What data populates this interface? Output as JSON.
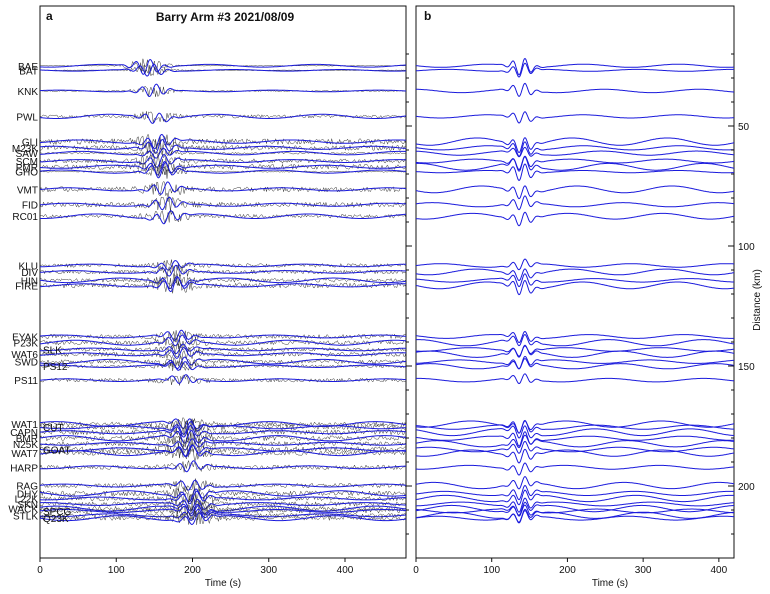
{
  "chart_data": [
    {
      "panel": "a",
      "type": "line",
      "title": "Barry Arm #3 2021/08/09",
      "xlabel": "Time (s)",
      "xlim": [
        0,
        480
      ],
      "xticks": [
        0,
        100,
        200,
        300,
        400
      ],
      "series_colors": {
        "raw": "#333333",
        "synthetic": "#1a1adc"
      },
      "stations": [
        {
          "name": "BAE",
          "distance": 24.9,
          "arrival": 140,
          "amp": 1.0,
          "noise": 0.1
        },
        {
          "name": "BAT",
          "distance": 26.8,
          "arrival": 145,
          "amp": 0.8,
          "noise": 0.1
        },
        {
          "name": "KNK",
          "distance": 35.4,
          "arrival": 148,
          "amp": 0.8,
          "noise": 0.15
        },
        {
          "name": "PWL",
          "distance": 46.0,
          "arrival": 152,
          "amp": 0.7,
          "noise": 0.5
        },
        {
          "name": "GLI",
          "distance": 56.5,
          "arrival": 155,
          "amp": 0.9,
          "noise": 0.9
        },
        {
          "name": "M23K",
          "distance": 59.1,
          "arrival": 156,
          "amp": 0.9,
          "noise": 0.8
        },
        {
          "name": "SAW",
          "distance": 61.3,
          "arrival": 157,
          "amp": 0.6,
          "noise": 0.3
        },
        {
          "name": "SCM",
          "distance": 64.6,
          "arrival": 158,
          "amp": 0.8,
          "noise": 0.7
        },
        {
          "name": "PMR",
          "distance": 67.0,
          "arrival": 159,
          "amp": 0.9,
          "noise": 0.8
        },
        {
          "name": "GHO",
          "distance": 69.0,
          "arrival": 160,
          "amp": 1.0,
          "noise": 0.2
        },
        {
          "name": "VMT",
          "distance": 76.4,
          "arrival": 163,
          "amp": 0.8,
          "noise": 0.8
        },
        {
          "name": "FID",
          "distance": 82.8,
          "arrival": 165,
          "amp": 0.8,
          "noise": 0.8
        },
        {
          "name": "RC01",
          "distance": 87.6,
          "arrival": 167,
          "amp": 0.8,
          "noise": 0.6
        },
        {
          "name": "KLU",
          "distance": 108.1,
          "arrival": 173,
          "amp": 0.6,
          "noise": 0.6
        },
        {
          "name": "DIV",
          "distance": 110.8,
          "arrival": 174,
          "amp": 0.7,
          "noise": 0.6
        },
        {
          "name": "HIN",
          "distance": 114.3,
          "arrival": 175,
          "amp": 0.8,
          "noise": 0.6
        },
        {
          "name": "FIRE",
          "distance": 116.4,
          "arrival": 176,
          "amp": 0.9,
          "noise": 0.8
        },
        {
          "name": "EYAK",
          "distance": 137.7,
          "arrival": 181,
          "amp": 0.7,
          "noise": 0.7
        },
        {
          "name": "P23K",
          "distance": 140.3,
          "arrival": 182,
          "amp": 0.7,
          "noise": 0.7
        },
        {
          "name": "SLK",
          "distance": 143.1,
          "arrival": 183,
          "amp": 0.6,
          "noise": 0.6
        },
        {
          "name": "WAT6",
          "distance": 145.1,
          "arrival": 184,
          "amp": 0.7,
          "noise": 0.7
        },
        {
          "name": "SWD",
          "distance": 148.2,
          "arrival": 185,
          "amp": 0.7,
          "noise": 0.6
        },
        {
          "name": "PS12",
          "distance": 150.1,
          "arrival": 186,
          "amp": 0.6,
          "noise": 0.5
        },
        {
          "name": "PS11",
          "distance": 155.9,
          "arrival": 187,
          "amp": 0.6,
          "noise": 0.6
        },
        {
          "name": "WAT1",
          "distance": 174.2,
          "arrival": 192,
          "amp": 0.7,
          "noise": 0.7
        },
        {
          "name": "CUT",
          "distance": 175.5,
          "arrival": 193,
          "amp": 0.8,
          "noise": 0.8
        },
        {
          "name": "CAPN",
          "distance": 177.6,
          "arrival": 193,
          "amp": 0.8,
          "noise": 0.8
        },
        {
          "name": "BMR",
          "distance": 180.1,
          "arrival": 194,
          "amp": 0.9,
          "noise": 0.8
        },
        {
          "name": "N25K",
          "distance": 182.4,
          "arrival": 195,
          "amp": 0.7,
          "noise": 0.7
        },
        {
          "name": "GOAT",
          "distance": 184.8,
          "arrival": 195,
          "amp": 0.7,
          "noise": 0.9
        },
        {
          "name": "WAT7",
          "distance": 186.3,
          "arrival": 196,
          "amp": 0.8,
          "noise": 0.7
        },
        {
          "name": "HARP",
          "distance": 192.2,
          "arrival": 197,
          "amp": 0.7,
          "noise": 0.7
        },
        {
          "name": "RAG",
          "distance": 199.8,
          "arrival": 199,
          "amp": 0.7,
          "noise": 0.7
        },
        {
          "name": "DHY",
          "distance": 203.1,
          "arrival": 200,
          "amp": 0.8,
          "noise": 0.8
        },
        {
          "name": "L22K",
          "distance": 205.2,
          "arrival": 201,
          "amp": 0.8,
          "noise": 0.7
        },
        {
          "name": "SKN",
          "distance": 207.5,
          "arrival": 202,
          "amp": 0.8,
          "noise": 0.7
        },
        {
          "name": "WACK",
          "distance": 209.4,
          "arrival": 202,
          "amp": 0.7,
          "noise": 0.7
        },
        {
          "name": "SPCG",
          "distance": 210.4,
          "arrival": 203,
          "amp": 0.7,
          "noise": 0.7
        },
        {
          "name": "STLK",
          "distance": 212.2,
          "arrival": 203,
          "amp": 0.7,
          "noise": 0.7
        },
        {
          "name": "Q23K",
          "distance": 213.4,
          "arrival": 204,
          "amp": 0.7,
          "noise": 0.7
        }
      ]
    },
    {
      "panel": "b",
      "type": "line",
      "xlabel": "Time (s)",
      "ylabel": "Distance (km)",
      "xlim": [
        0,
        420
      ],
      "xticks": [
        0,
        100,
        200,
        300,
        400
      ],
      "yticks": [
        50,
        100,
        150,
        200
      ],
      "arrival_time": 140,
      "series_color": "#1a1adc"
    }
  ]
}
